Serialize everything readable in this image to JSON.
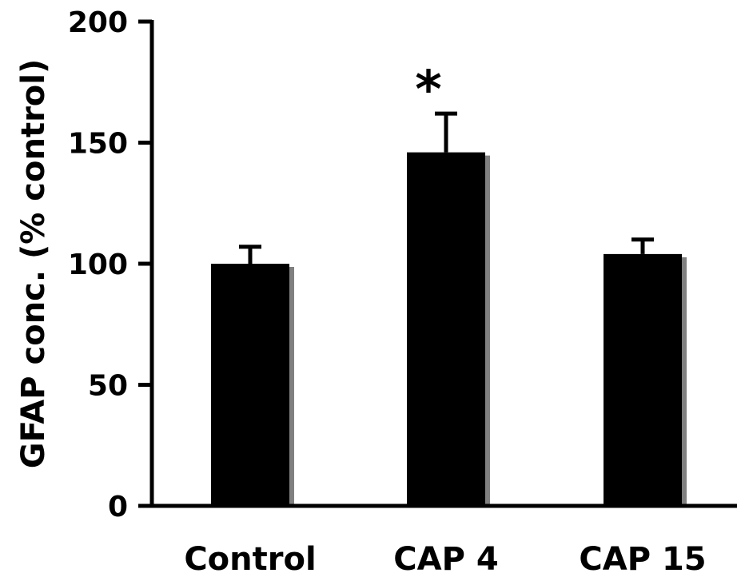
{
  "chart_data": {
    "type": "bar",
    "categories": [
      "Control",
      "CAP 4",
      "CAP 15"
    ],
    "values": [
      100,
      146,
      104
    ],
    "error_bars": [
      7,
      16,
      6
    ],
    "xlabel": "",
    "ylabel": "GFAP conc. (% control)",
    "ylim": [
      0,
      200
    ],
    "yticks": [
      "0",
      "50",
      "100",
      "150",
      "200"
    ],
    "annotations": [
      {
        "category": "CAP 4",
        "text": "*"
      }
    ],
    "grid": false,
    "legend": "none",
    "colors": {
      "bar": "#000000",
      "bar_shadow": "#808080",
      "axis": "#000000"
    }
  }
}
